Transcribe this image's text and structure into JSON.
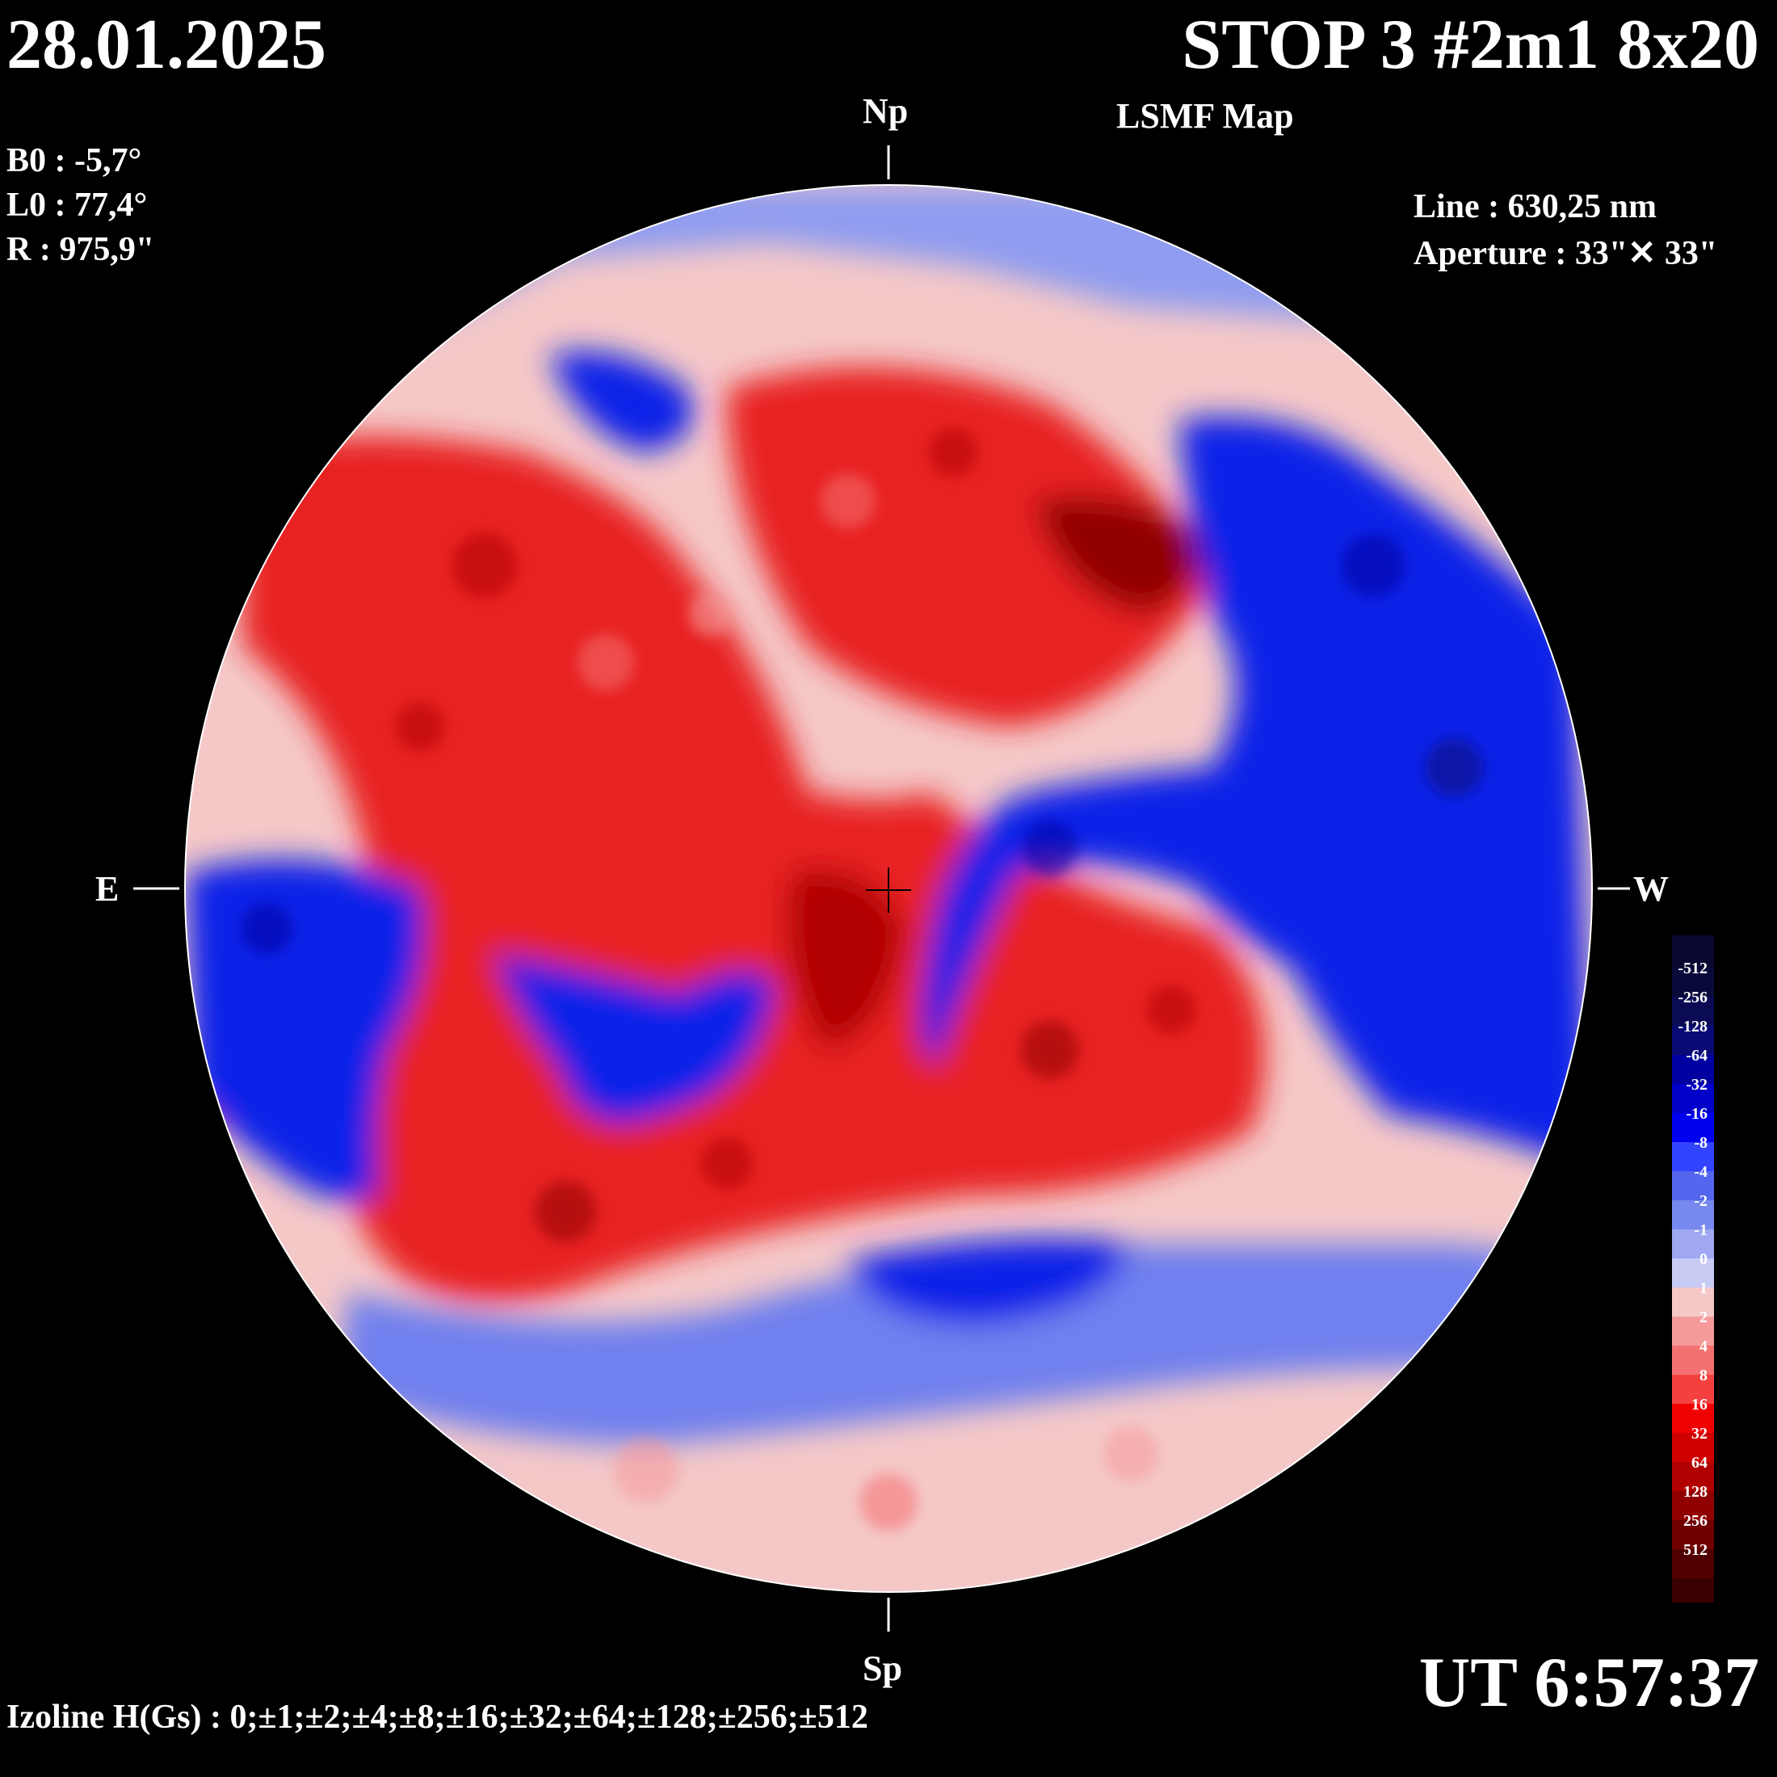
{
  "header": {
    "date": "28.01.2025",
    "title": "STOP 3 #2m1 8x20",
    "subtitle": "LSMF  Map"
  },
  "params": {
    "b0": "B0 : -5,7°",
    "l0": "L0 : 77,4°",
    "r": "R  : 975,9\""
  },
  "instrument": {
    "line": "Line :  630,25 nm",
    "aperture": "Aperture : 33\"✕ 33\""
  },
  "directions": {
    "north": "Np",
    "south": "Sp",
    "east": "E",
    "west": "W"
  },
  "time": "UT 6:57:37",
  "izoline": "Izoline H(Gs) : 0;±1;±2;±4;±8;±16;±32;±64;±128;±256;±512",
  "legend": {
    "labels": [
      "-512",
      "-256",
      "-128",
      "-64",
      "-32",
      "-16",
      "-8",
      "-4",
      "-2",
      "-1",
      "0",
      "1",
      "2",
      "4",
      "8",
      "16",
      "32",
      "64",
      "128",
      "256",
      "512"
    ],
    "colors": [
      "#0a0a3a",
      "#0a0a55",
      "#0a0a75",
      "#0000a0",
      "#0000c8",
      "#0000f0",
      "#3344ff",
      "#5566ee",
      "#7788ee",
      "#9fa8f0",
      "#c8ccf5",
      "#f5c8c8",
      "#f59a9a",
      "#f57070",
      "#f54040",
      "#f00000",
      "#d00000",
      "#b00000",
      "#900000",
      "#700000",
      "#500000"
    ]
  },
  "palette": {
    "background": "#000000",
    "positive": "#e81010",
    "negative": "#1010e0",
    "isoline": "#ffffff"
  }
}
